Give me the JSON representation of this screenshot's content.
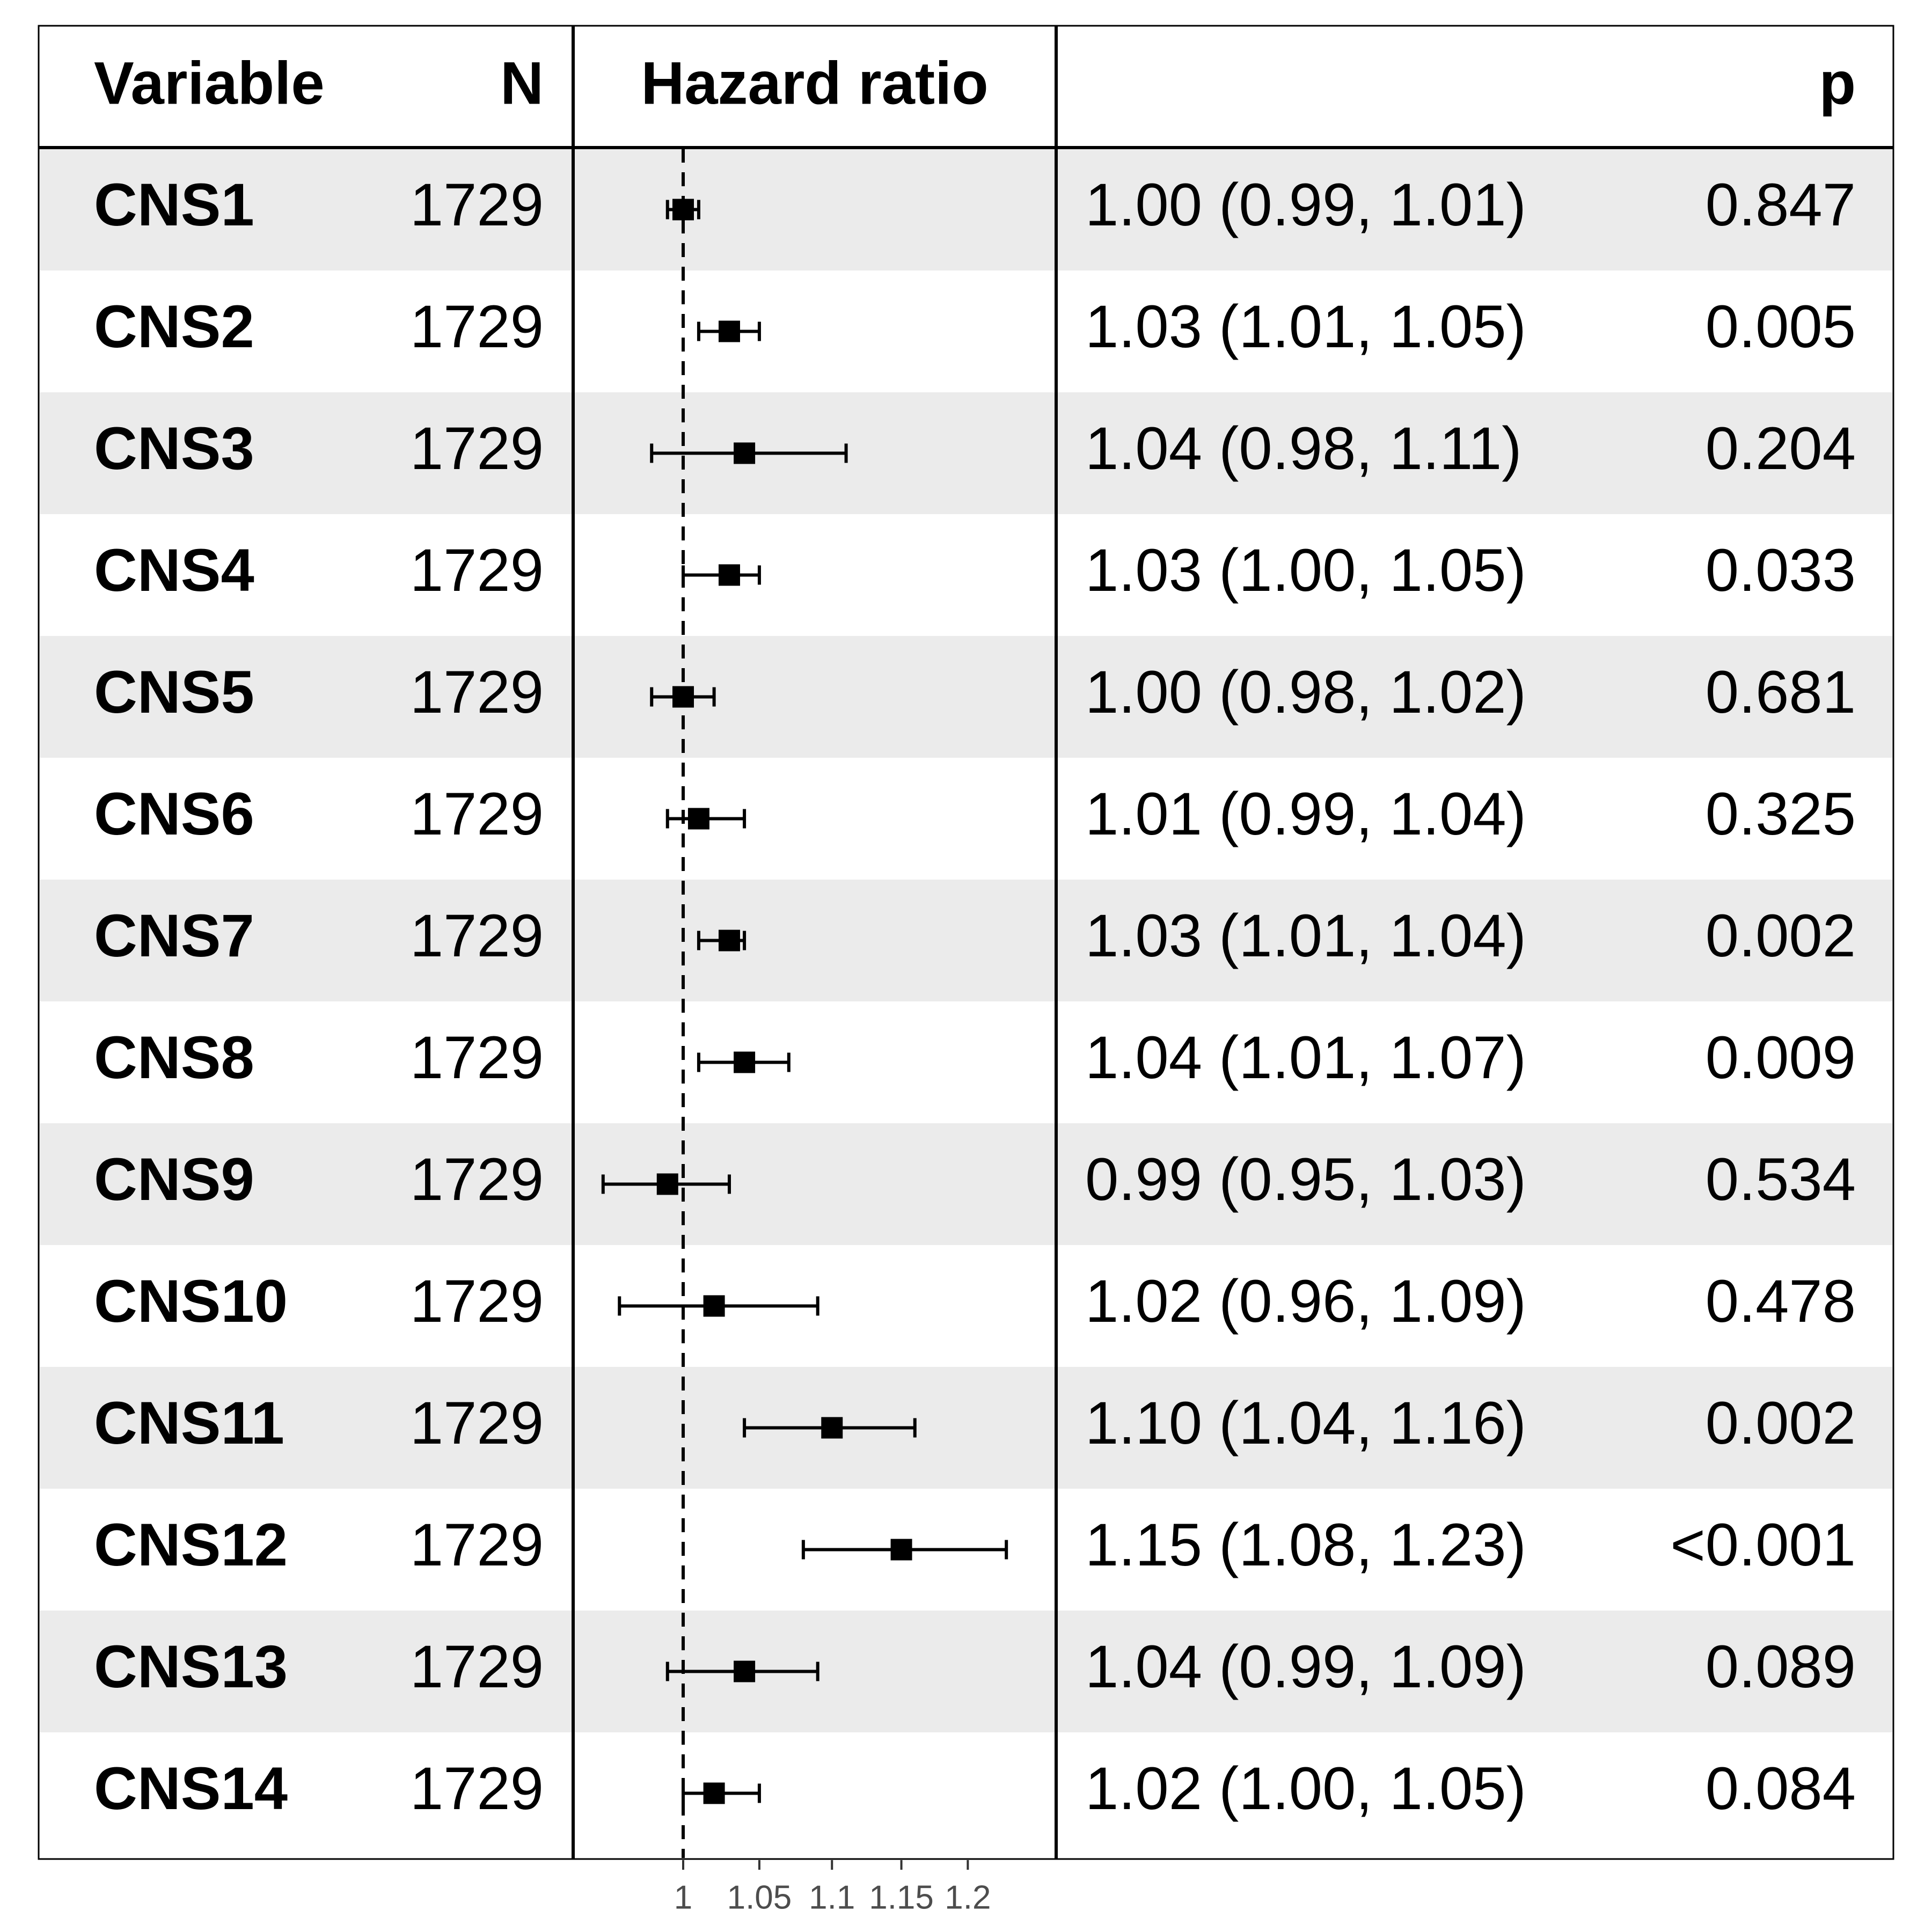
{
  "chart_data": {
    "type": "forest",
    "columns": {
      "variable": "Variable",
      "n": "N",
      "estimate": "Hazard ratio",
      "p": "p"
    },
    "reference_line": 1,
    "x_scale": "log",
    "xlim": [
      0.92,
      1.26
    ],
    "x_ticks": [
      1,
      1.05,
      1.1,
      1.15,
      1.2
    ],
    "x_tick_labels": [
      "1",
      "1.05",
      "1.1",
      "1.15",
      "1.2"
    ],
    "rows": [
      {
        "variable": "CNS1",
        "n": "1729",
        "hr": 1.0,
        "lo": 0.99,
        "hi": 1.01,
        "ci_text": "1.00 (0.99, 1.01)",
        "p": "0.847"
      },
      {
        "variable": "CNS2",
        "n": "1729",
        "hr": 1.03,
        "lo": 1.01,
        "hi": 1.05,
        "ci_text": "1.03 (1.01, 1.05)",
        "p": "0.005"
      },
      {
        "variable": "CNS3",
        "n": "1729",
        "hr": 1.04,
        "lo": 0.98,
        "hi": 1.11,
        "ci_text": "1.04 (0.98, 1.11)",
        "p": "0.204"
      },
      {
        "variable": "CNS4",
        "n": "1729",
        "hr": 1.03,
        "lo": 1.0,
        "hi": 1.05,
        "ci_text": "1.03 (1.00, 1.05)",
        "p": "0.033"
      },
      {
        "variable": "CNS5",
        "n": "1729",
        "hr": 1.0,
        "lo": 0.98,
        "hi": 1.02,
        "ci_text": "1.00 (0.98, 1.02)",
        "p": "0.681"
      },
      {
        "variable": "CNS6",
        "n": "1729",
        "hr": 1.01,
        "lo": 0.99,
        "hi": 1.04,
        "ci_text": "1.01 (0.99, 1.04)",
        "p": "0.325"
      },
      {
        "variable": "CNS7",
        "n": "1729",
        "hr": 1.03,
        "lo": 1.01,
        "hi": 1.04,
        "ci_text": "1.03 (1.01, 1.04)",
        "p": "0.002"
      },
      {
        "variable": "CNS8",
        "n": "1729",
        "hr": 1.04,
        "lo": 1.01,
        "hi": 1.07,
        "ci_text": "1.04 (1.01, 1.07)",
        "p": "0.009"
      },
      {
        "variable": "CNS9",
        "n": "1729",
        "hr": 0.99,
        "lo": 0.95,
        "hi": 1.03,
        "ci_text": "0.99 (0.95, 1.03)",
        "p": "0.534"
      },
      {
        "variable": "CNS10",
        "n": "1729",
        "hr": 1.02,
        "lo": 0.96,
        "hi": 1.09,
        "ci_text": "1.02 (0.96, 1.09)",
        "p": "0.478"
      },
      {
        "variable": "CNS11",
        "n": "1729",
        "hr": 1.1,
        "lo": 1.04,
        "hi": 1.16,
        "ci_text": "1.10 (1.04, 1.16)",
        "p": "0.002"
      },
      {
        "variable": "CNS12",
        "n": "1729",
        "hr": 1.15,
        "lo": 1.08,
        "hi": 1.23,
        "ci_text": "1.15 (1.08, 1.23)",
        "p": "<0.001"
      },
      {
        "variable": "CNS13",
        "n": "1729",
        "hr": 1.04,
        "lo": 0.99,
        "hi": 1.09,
        "ci_text": "1.04 (0.99, 1.09)",
        "p": "0.089"
      },
      {
        "variable": "CNS14",
        "n": "1729",
        "hr": 1.02,
        "lo": 1.0,
        "hi": 1.05,
        "ci_text": "1.02 (1.00, 1.05)",
        "p": "0.084"
      }
    ],
    "colors": {
      "stripe": "#ebebeb",
      "ink": "#000000",
      "tick_label": "#4d4d4d"
    }
  }
}
